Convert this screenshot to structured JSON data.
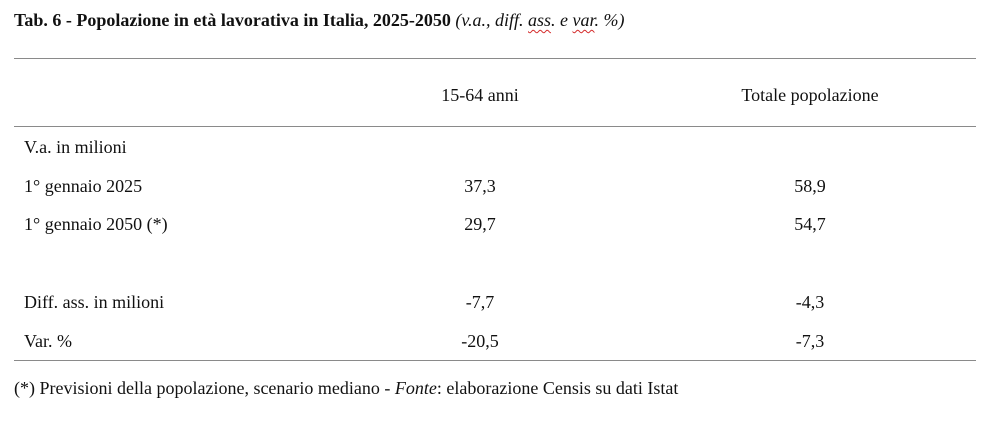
{
  "title": {
    "main": "Tab. 6 - Popolazione in età lavorativa in Italia, 2025-2050",
    "sub_prefix": "(v.a., diff. ",
    "sub_ass": "ass",
    "sub_mid": ". e ",
    "sub_var": "var",
    "sub_suffix": ". %)"
  },
  "table": {
    "columns": [
      "15-64 anni",
      "Totale popolazione"
    ],
    "section_label": "V.a. in milioni",
    "rows": [
      {
        "label": "1° gennaio 2025",
        "values": [
          "37,3",
          "58,9"
        ]
      },
      {
        "label": "1° gennaio 2050 (*)",
        "values": [
          "29,7",
          "54,7"
        ]
      },
      {
        "label": "Diff. ass. in milioni",
        "values": [
          "-7,7",
          "-4,3"
        ]
      },
      {
        "label": "Var. %",
        "values": [
          "-20,5",
          "-7,3"
        ]
      }
    ]
  },
  "footnote": {
    "prefix": "(*) Previsioni della popolazione, scenario mediano - ",
    "source_label": "Fonte",
    "suffix": ": elaborazione Censis su dati Istat"
  }
}
